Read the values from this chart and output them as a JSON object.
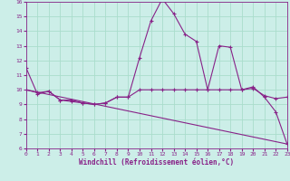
{
  "xlabel": "Windchill (Refroidissement éolien,°C)",
  "bg_color": "#cceee8",
  "grid_color": "#aaddcc",
  "line_color": "#882288",
  "xmin": 0,
  "xmax": 23,
  "ymin": 6,
  "ymax": 16,
  "series": {
    "line1_x": [
      0,
      1,
      2,
      3,
      4,
      5,
      6,
      7,
      8,
      9,
      10,
      11,
      12,
      13,
      14,
      15,
      16,
      17,
      18,
      19,
      20,
      21,
      22,
      23
    ],
    "line1_y": [
      11.5,
      9.7,
      9.9,
      9.3,
      9.3,
      9.1,
      9.0,
      9.1,
      9.5,
      9.5,
      12.2,
      14.7,
      16.2,
      15.2,
      13.8,
      13.3,
      10.0,
      13.0,
      12.9,
      10.0,
      10.2,
      9.5,
      8.5,
      6.3
    ],
    "line2_x": [
      0,
      1,
      2,
      3,
      4,
      5,
      6,
      7,
      8,
      9,
      10,
      11,
      12,
      13,
      14,
      15,
      16,
      17,
      18,
      19,
      20,
      21,
      22,
      23
    ],
    "line2_y": [
      10.0,
      9.8,
      9.9,
      9.3,
      9.2,
      9.1,
      9.0,
      9.1,
      9.5,
      9.5,
      10.0,
      10.0,
      10.0,
      10.0,
      10.0,
      10.0,
      10.0,
      10.0,
      10.0,
      10.0,
      10.1,
      9.6,
      9.4,
      9.5
    ],
    "line3_x": [
      0,
      23
    ],
    "line3_y": [
      10.0,
      6.3
    ]
  }
}
